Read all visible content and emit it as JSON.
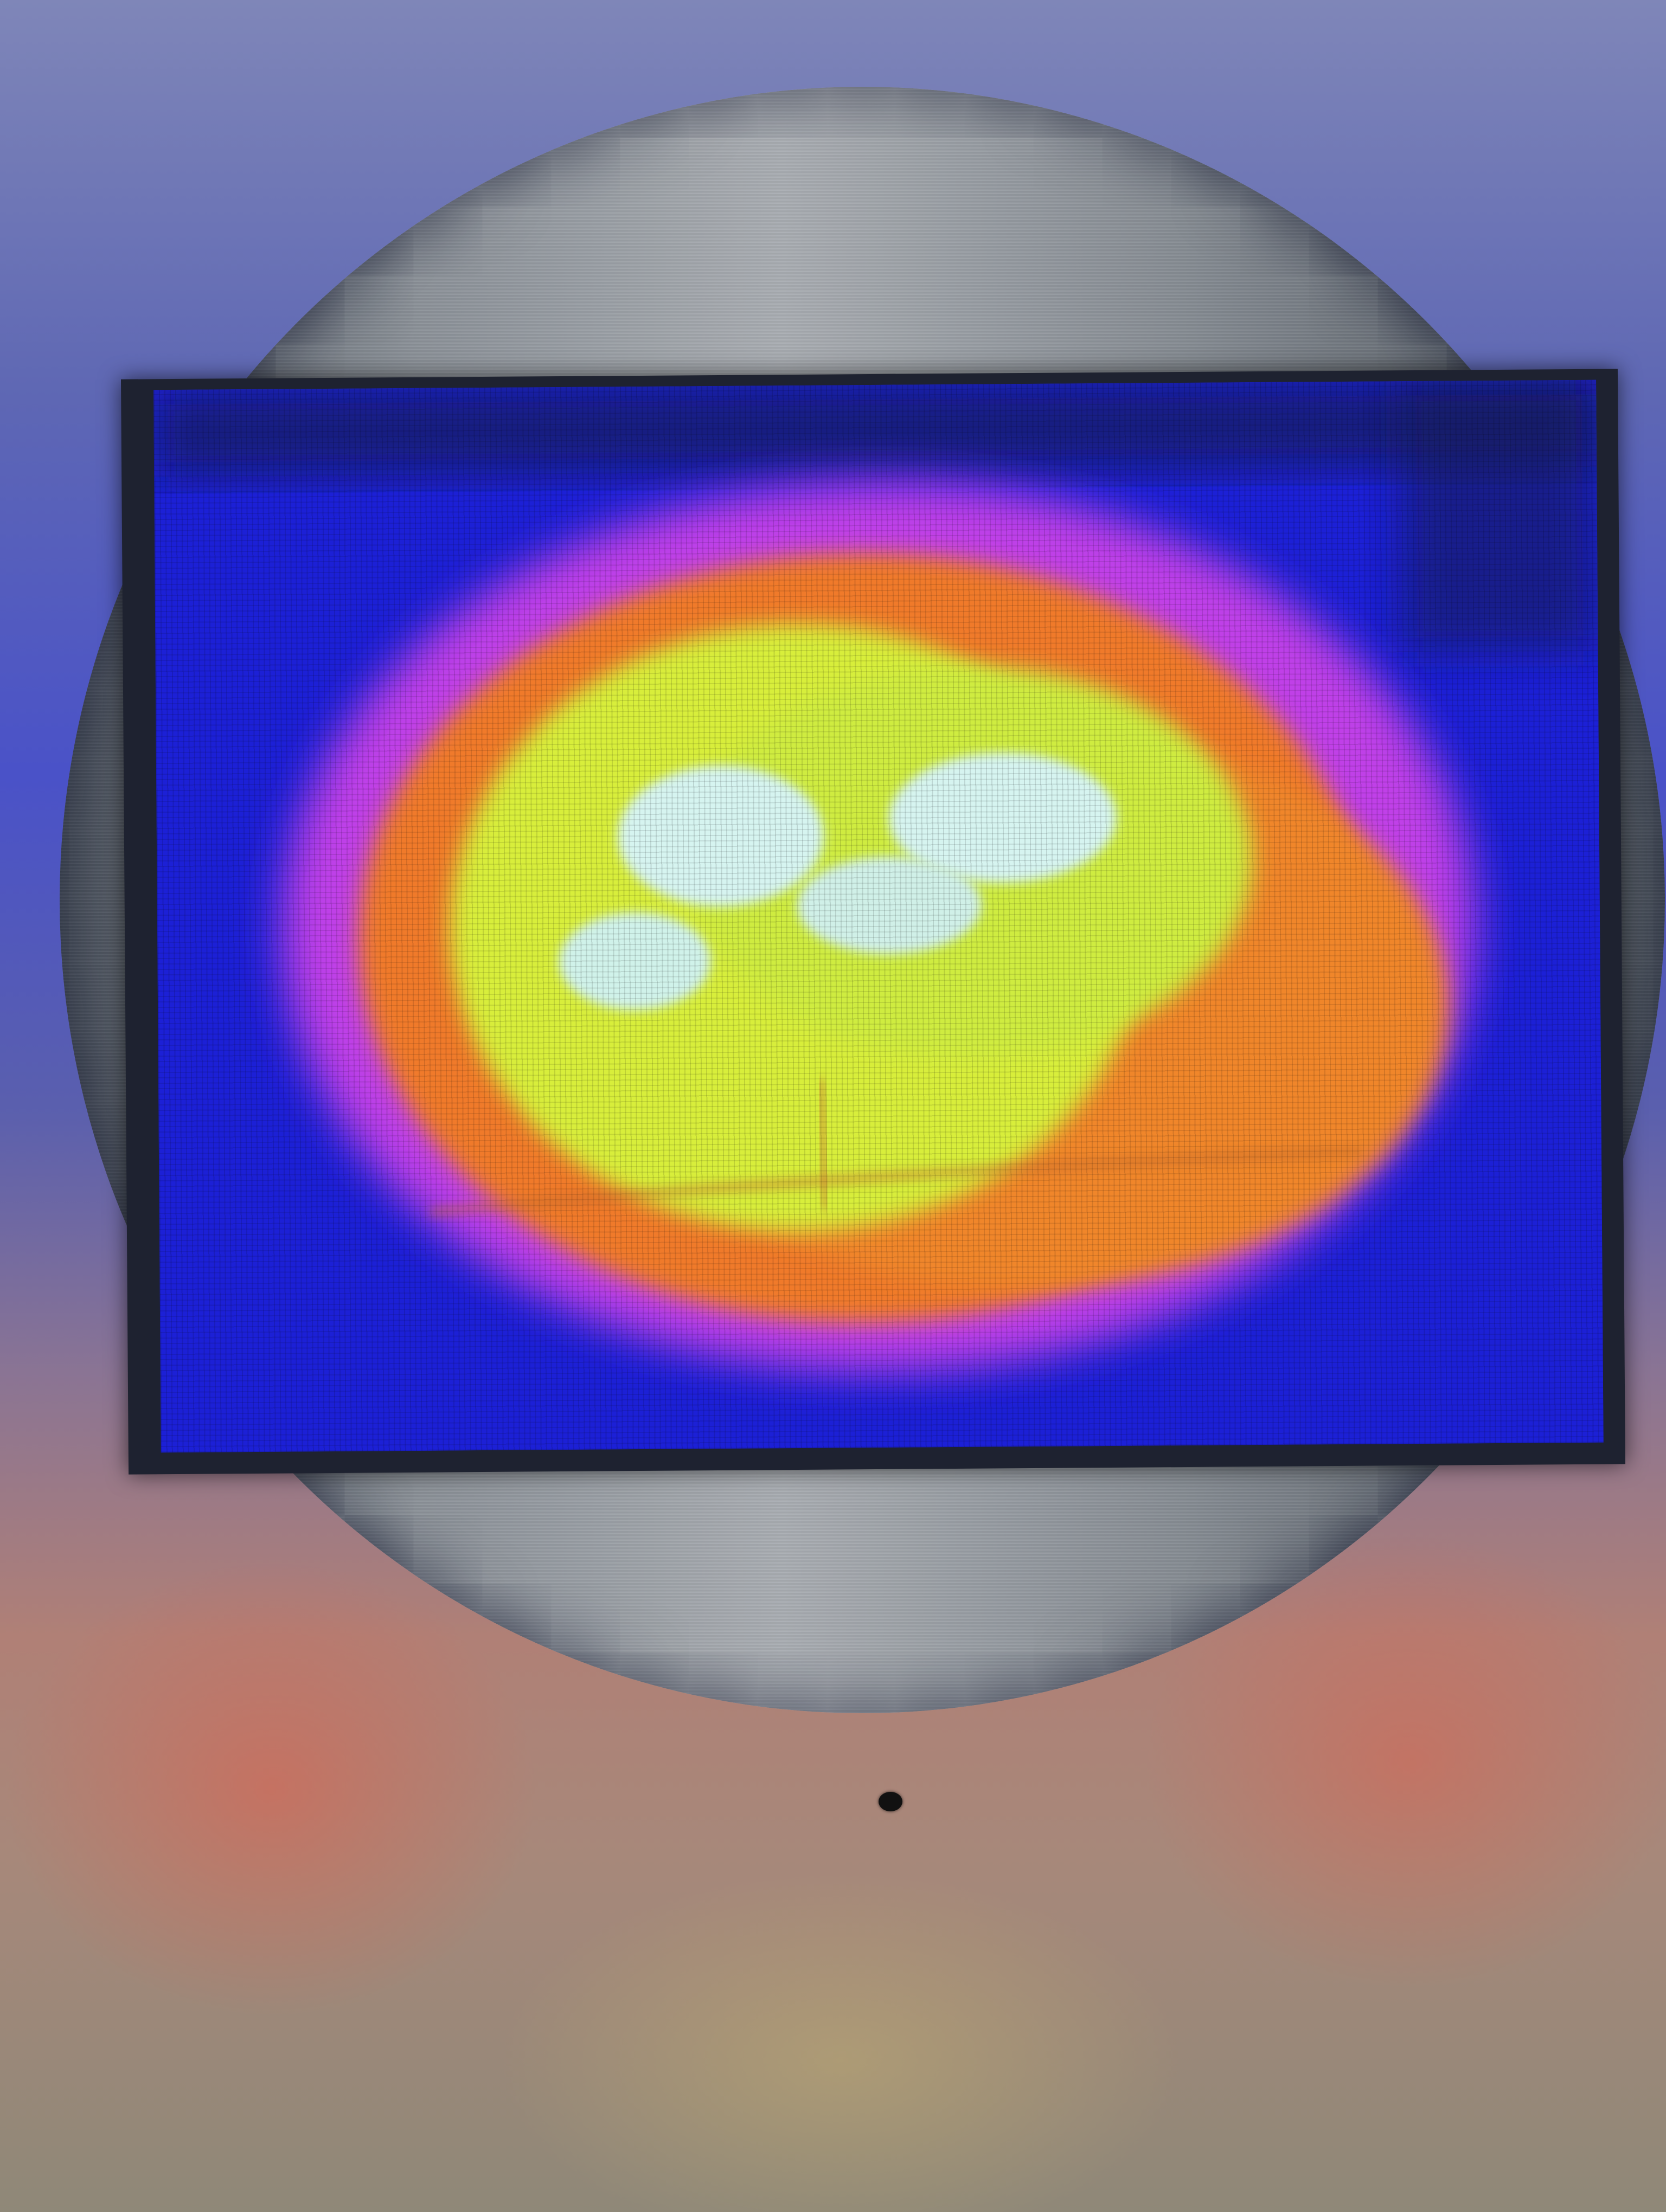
{
  "scene": {
    "subject": "thermal-display-inside-metal-tube",
    "colors": {
      "tube_top": "#5e67b4",
      "tube_bottom_warm": "#b08076",
      "metal_plate": "#a9adb2",
      "bezel": "#1e2230",
      "thermal_cold": "#1d22d8",
      "thermal_mid_magenta": "#d846e8",
      "thermal_warm_orange": "#f07a2c",
      "thermal_hot_yellow": "#d8f03a",
      "thermal_hottest": "#d6f4f0"
    }
  }
}
